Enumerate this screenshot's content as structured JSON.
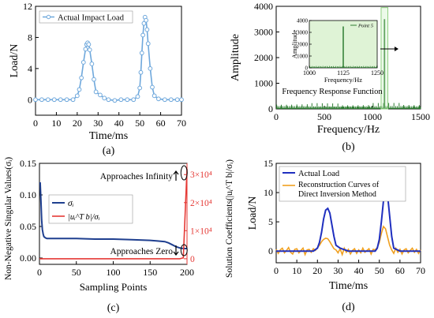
{
  "chart_data": [
    {
      "id": "a",
      "type": "line",
      "panel_label": "(a)",
      "xlabel": "Time/ms",
      "ylabel": "Load/N",
      "xlim": [
        0,
        70
      ],
      "ylim": [
        -2,
        12
      ],
      "xticks": [
        "0",
        "10",
        "20",
        "30",
        "40",
        "50",
        "60",
        "70"
      ],
      "yticks": [
        "0",
        "4",
        "8",
        "12"
      ],
      "legend": "top-left",
      "series": [
        {
          "name": "Actual Impact Load",
          "color": "#6fa8dc",
          "marker": "circle-open",
          "x": [
            0,
            3,
            6,
            9,
            12,
            15,
            18,
            20,
            21,
            22,
            23,
            24,
            24.5,
            25,
            25.5,
            26,
            27,
            28,
            29,
            31,
            33,
            35,
            38,
            41,
            44,
            47,
            49,
            50,
            50.5,
            51,
            51.5,
            52,
            52.5,
            53,
            53.5,
            54,
            55,
            56,
            57,
            59,
            62,
            65,
            68,
            70
          ],
          "y": [
            0,
            0,
            0,
            0,
            0,
            0,
            0,
            0.5,
            1.3,
            2.8,
            4.8,
            6.5,
            7.1,
            7.3,
            7.1,
            6.4,
            4.6,
            2.6,
            1.0,
            0.6,
            0.2,
            0,
            -0.1,
            0,
            0,
            0,
            0.4,
            1.5,
            3.5,
            6.0,
            8.3,
            9.8,
            10.6,
            10.2,
            9.0,
            7.2,
            4.0,
            1.6,
            0.5,
            0.1,
            0,
            0,
            0,
            0
          ]
        }
      ]
    },
    {
      "id": "b",
      "type": "line",
      "panel_label": "(b)",
      "xlabel": "Frequency/Hz",
      "ylabel": "Amplitude",
      "xlim": [
        0,
        1500
      ],
      "ylim": [
        0,
        4000
      ],
      "xticks": [
        "0",
        "500",
        "1000",
        "1500"
      ],
      "yticks": [
        "0",
        "1000",
        "2000",
        "3000",
        "4000"
      ],
      "annotation": "Frequency Response Function",
      "series": [
        {
          "name": "",
          "color": "#2e7d32",
          "peak_x": 1125,
          "peak_y": 3500
        }
      ],
      "inset": {
        "title": "Point 5",
        "xlabel": "Frequency/Hz",
        "ylabel": "Amplitude",
        "xlim": [
          1000,
          1250
        ],
        "ylim": [
          0,
          4000
        ],
        "xticks": [
          "1000",
          "1125",
          "1250"
        ],
        "yticks": [
          "0",
          "1000",
          "2000",
          "3000",
          "4000"
        ],
        "peak_x": 1125,
        "peak_y": 3500
      }
    },
    {
      "id": "c",
      "type": "line",
      "panel_label": "(c)",
      "xlabel": "Sampling Points",
      "ylabel": "Non-Negative Singular Values(σᵢ)",
      "ylabel_right": "Solution Coefficients(|uᵢ^T b|/σᵢ)",
      "xlim": [
        0,
        200
      ],
      "ylim": [
        -0.01,
        0.15
      ],
      "xticks": [
        "0",
        "50",
        "100",
        "150",
        "200"
      ],
      "yticks": [
        "0.00",
        "0.05",
        "0.10",
        "0.15"
      ],
      "yticks_right": [
        "0",
        "1×10⁴",
        "2×10⁴",
        "3×10⁴"
      ],
      "annotations": [
        "Approaches Infinity",
        "Approaches Zero"
      ],
      "legend": "top-left",
      "series": [
        {
          "name": "σᵢ",
          "color": "#1f3f8f",
          "x": [
            1,
            2,
            3,
            4,
            5,
            6,
            8,
            10,
            15,
            25,
            50,
            75,
            100,
            125,
            150,
            160,
            170,
            175,
            180,
            185,
            190,
            195,
            200
          ],
          "y": [
            0.12,
            0.09,
            0.06,
            0.045,
            0.038,
            0.034,
            0.032,
            0.031,
            0.031,
            0.031,
            0.031,
            0.03,
            0.03,
            0.029,
            0.028,
            0.027,
            0.026,
            0.024,
            0.021,
            0.018,
            0.016,
            0.015,
            0.015
          ]
        },
        {
          "name": "|uᵢ^T b|/σᵢ",
          "color": "#e53935",
          "axis": "right",
          "x": [
            0,
            190,
            195,
            200
          ],
          "y": [
            0,
            0,
            300,
            32000
          ]
        }
      ]
    },
    {
      "id": "d",
      "type": "line",
      "panel_label": "(d)",
      "xlabel": "Time/ms",
      "ylabel": "Load/N",
      "xlim": [
        0,
        70
      ],
      "ylim": [
        -2,
        15
      ],
      "xticks": [
        "0",
        "10",
        "20",
        "30",
        "40",
        "50",
        "60",
        "70"
      ],
      "yticks": [
        "0",
        "5",
        "10",
        "15"
      ],
      "legend": "top-left",
      "series": [
        {
          "name": "Actual Load",
          "color": "#1f2fbf",
          "x": [
            0,
            5,
            10,
            15,
            18,
            20,
            21,
            22,
            23,
            24,
            25,
            26,
            27,
            28,
            29,
            31,
            35,
            40,
            45,
            48,
            49,
            50,
            51,
            52,
            53,
            54,
            55,
            56,
            57,
            60,
            65,
            70
          ],
          "y": [
            0,
            0,
            0,
            0,
            0,
            0.5,
            1.5,
            3.2,
            5.5,
            7.0,
            7.3,
            6.5,
            4.5,
            2.5,
            1.0,
            0.5,
            0,
            0,
            0,
            0,
            0.5,
            2.0,
            5.0,
            8.5,
            10.5,
            9.5,
            6.0,
            2.5,
            0.5,
            0,
            0,
            0
          ]
        },
        {
          "name": "Reconstruction Curves of Direct Inversion Method",
          "color": "#f0a020",
          "x": [
            0,
            1,
            2,
            3,
            4,
            5,
            6,
            7,
            8,
            9,
            10,
            11,
            12,
            13,
            14,
            15,
            16,
            17,
            18,
            19,
            20,
            21,
            22,
            23,
            24,
            25,
            26,
            27,
            28,
            29,
            30,
            31,
            32,
            33,
            34,
            35,
            36,
            37,
            38,
            39,
            40,
            41,
            42,
            43,
            44,
            45,
            46,
            47,
            48,
            49,
            50,
            51,
            52,
            53,
            54,
            55,
            56,
            57,
            58,
            59,
            60,
            61,
            62,
            63,
            64,
            65,
            66,
            67,
            68,
            69,
            70
          ],
          "y": [
            0.3,
            -0.4,
            0.2,
            0.5,
            -0.3,
            0.1,
            0.6,
            -0.2,
            -0.5,
            0.3,
            0.4,
            -0.3,
            0.1,
            0.5,
            -0.6,
            0.2,
            0.3,
            -0.2,
            0.4,
            0.1,
            0.6,
            1.0,
            1.6,
            2.0,
            2.2,
            2.1,
            1.6,
            1.0,
            0.4,
            0.2,
            -0.3,
            0.4,
            -0.6,
            0.5,
            -0.2,
            0.3,
            -0.5,
            0.1,
            0.4,
            -0.4,
            0.2,
            -0.3,
            0.5,
            -0.2,
            0.1,
            0.4,
            -0.5,
            0.3,
            0.2,
            0.6,
            1.5,
            3.0,
            4.2,
            3.8,
            2.4,
            1.0,
            0.2,
            -0.4,
            0.5,
            -0.2,
            0.3,
            -0.5,
            0.2,
            0.4,
            -0.3,
            0.1,
            0.5,
            -0.2,
            0.3,
            -0.4,
            0.2
          ]
        }
      ]
    }
  ]
}
